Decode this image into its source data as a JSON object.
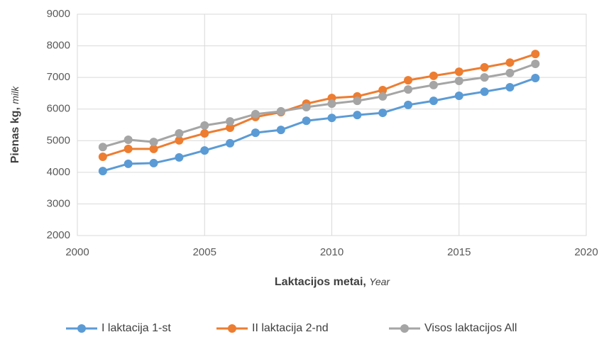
{
  "chart_data": {
    "type": "line",
    "y_label": "Pienas kg,",
    "y_label_en": "milk",
    "x_label": "Laktacijos metai,",
    "x_label_en": "Year",
    "x": [
      2001,
      2002,
      2003,
      2004,
      2005,
      2006,
      2007,
      2008,
      2009,
      2010,
      2011,
      2012,
      2013,
      2014,
      2015,
      2016,
      2017,
      2018
    ],
    "series": [
      {
        "name": "I laktacija 1-st",
        "color": "#5b9bd5",
        "values": [
          4040,
          4270,
          4290,
          4470,
          4690,
          4920,
          5250,
          5340,
          5630,
          5720,
          5810,
          5880,
          6130,
          6260,
          6420,
          6550,
          6690,
          6980
        ]
      },
      {
        "name": "II laktacija 2-nd",
        "color": "#ed7d31",
        "values": [
          4490,
          4740,
          4740,
          5010,
          5230,
          5410,
          5750,
          5900,
          6170,
          6350,
          6400,
          6600,
          6910,
          7050,
          7180,
          7320,
          7470,
          7740
        ]
      },
      {
        "name": "Visos laktacijos All",
        "color": "#a5a5a5",
        "values": [
          4800,
          5030,
          4960,
          5230,
          5480,
          5610,
          5840,
          5930,
          6060,
          6170,
          6260,
          6400,
          6620,
          6760,
          6890,
          7000,
          7140,
          7430
        ]
      }
    ],
    "xlim": [
      2000,
      2020
    ],
    "xticks": [
      2000,
      2005,
      2010,
      2015,
      2020
    ],
    "ylim": [
      2000,
      9000
    ],
    "yticks": [
      2000,
      3000,
      4000,
      5000,
      6000,
      7000,
      8000,
      9000
    ],
    "grid": true,
    "legend": "bottom"
  }
}
